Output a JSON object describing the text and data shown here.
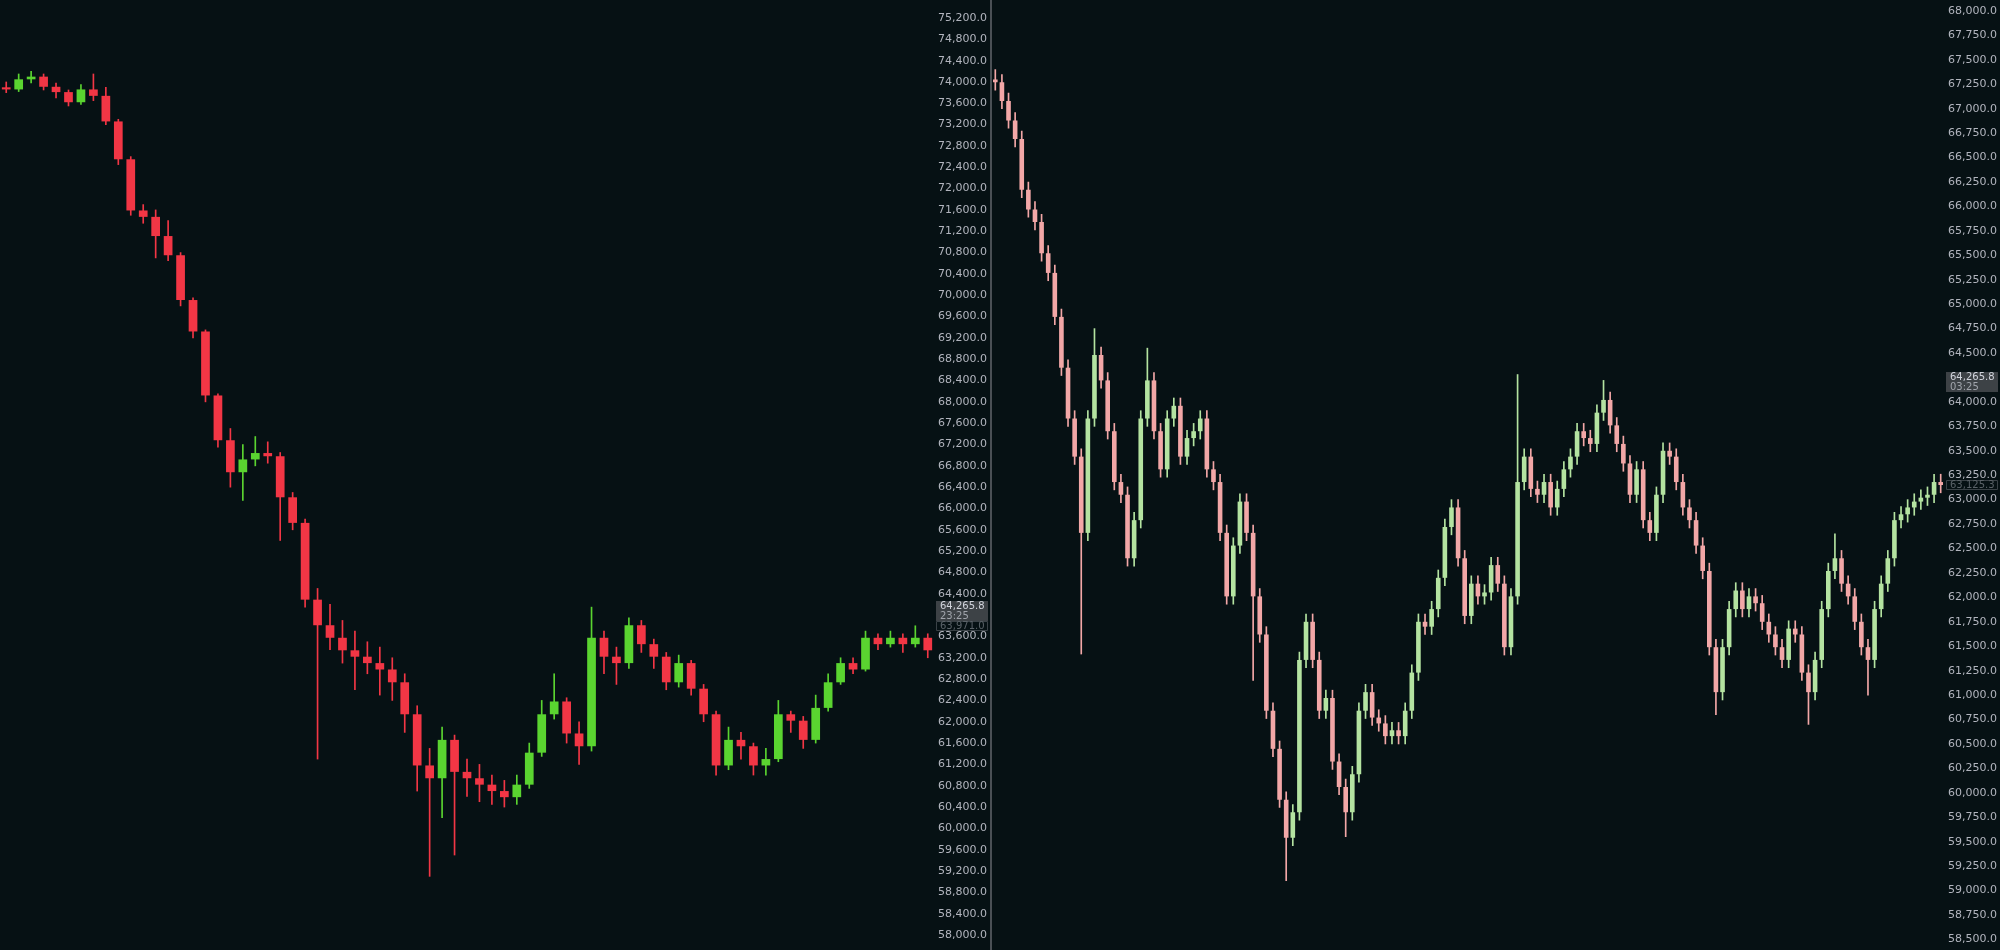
{
  "chart_data": [
    {
      "type": "candlestick",
      "tick_labels": "y",
      "grid": false,
      "legend": false,
      "categories": [
        null,
        null,
        null,
        null,
        null,
        null,
        null,
        null,
        null,
        null,
        null,
        null,
        null,
        null,
        null,
        null,
        null,
        null,
        null,
        null,
        null,
        null,
        null,
        null,
        null,
        null,
        null,
        null,
        null,
        null,
        null,
        null,
        null,
        null,
        null,
        null,
        null,
        null,
        null,
        null,
        null,
        null,
        null,
        null,
        null,
        null,
        null,
        null,
        null,
        null,
        null,
        null,
        null,
        null,
        null,
        null,
        null,
        null,
        null,
        null,
        null,
        null,
        null,
        null,
        null,
        null,
        null,
        null,
        null,
        null,
        null,
        null,
        null,
        null,
        null
      ],
      "ohlc": [
        [
          73900,
          74000,
          73800,
          73860
        ],
        [
          73860,
          74150,
          73820,
          74050
        ],
        [
          74050,
          74200,
          73980,
          74100
        ],
        [
          74100,
          74150,
          73850,
          73910
        ],
        [
          73910,
          73980,
          73700,
          73810
        ],
        [
          73810,
          73850,
          73550,
          73620
        ],
        [
          73620,
          73950,
          73580,
          73860
        ],
        [
          73860,
          74150,
          73650,
          73740
        ],
        [
          73740,
          73900,
          73200,
          73260
        ],
        [
          73260,
          73300,
          72450,
          72550
        ],
        [
          72550,
          72600,
          71500,
          71590
        ],
        [
          71590,
          71700,
          71350,
          71470
        ],
        [
          71470,
          71600,
          70700,
          71110
        ],
        [
          71110,
          71400,
          70650,
          70750
        ],
        [
          70750,
          70800,
          69800,
          69910
        ],
        [
          69910,
          69950,
          69200,
          69320
        ],
        [
          69320,
          69350,
          68000,
          68120
        ],
        [
          68120,
          68150,
          67150,
          67280
        ],
        [
          67280,
          67500,
          66400,
          66680
        ],
        [
          66680,
          67200,
          66150,
          66920
        ],
        [
          66920,
          67350,
          66800,
          67040
        ],
        [
          67040,
          67250,
          66850,
          66980
        ],
        [
          66980,
          67050,
          65400,
          66210
        ],
        [
          66210,
          66300,
          65600,
          65730
        ],
        [
          65730,
          65800,
          64150,
          64290
        ],
        [
          64290,
          64500,
          61300,
          63810
        ],
        [
          63810,
          64200,
          63350,
          63575
        ],
        [
          63575,
          63900,
          63100,
          63340
        ],
        [
          63340,
          63700,
          62600,
          63220
        ],
        [
          63220,
          63500,
          62900,
          63100
        ],
        [
          63100,
          63400,
          62500,
          62980
        ],
        [
          62980,
          63200,
          62400,
          62740
        ],
        [
          62740,
          62900,
          61800,
          62140
        ],
        [
          62140,
          62300,
          60700,
          61180
        ],
        [
          61180,
          61500,
          59100,
          60940
        ],
        [
          60940,
          61900,
          60200,
          61660
        ],
        [
          61660,
          61750,
          59500,
          61060
        ],
        [
          61060,
          61300,
          60600,
          60940
        ],
        [
          60940,
          61200,
          60500,
          60820
        ],
        [
          60820,
          61000,
          60450,
          60700
        ],
        [
          60700,
          60900,
          60400,
          60585
        ],
        [
          60585,
          61000,
          60450,
          60820
        ],
        [
          60820,
          61600,
          60750,
          61420
        ],
        [
          61420,
          62400,
          61350,
          62140
        ],
        [
          62140,
          62900,
          62050,
          62380
        ],
        [
          62380,
          62450,
          61600,
          61780
        ],
        [
          61780,
          62000,
          61200,
          61540
        ],
        [
          61540,
          64150,
          61450,
          63575
        ],
        [
          63575,
          63700,
          62900,
          63220
        ],
        [
          63220,
          63400,
          62700,
          63100
        ],
        [
          63100,
          63950,
          63000,
          63810
        ],
        [
          63810,
          63900,
          63300,
          63455
        ],
        [
          63455,
          63550,
          63000,
          63220
        ],
        [
          63220,
          63300,
          62600,
          62740
        ],
        [
          62740,
          63250,
          62650,
          63100
        ],
        [
          63100,
          63150,
          62500,
          62620
        ],
        [
          62620,
          62700,
          62000,
          62140
        ],
        [
          62140,
          62200,
          61000,
          61180
        ],
        [
          61180,
          61900,
          61100,
          61660
        ],
        [
          61660,
          61800,
          61300,
          61540
        ],
        [
          61540,
          61600,
          61000,
          61180
        ],
        [
          61180,
          61500,
          61000,
          61300
        ],
        [
          61300,
          62400,
          61250,
          62140
        ],
        [
          62140,
          62200,
          61800,
          62020
        ],
        [
          62020,
          62100,
          61500,
          61660
        ],
        [
          61660,
          62500,
          61600,
          62260
        ],
        [
          62260,
          62900,
          62200,
          62740
        ],
        [
          62740,
          63200,
          62700,
          63100
        ],
        [
          63100,
          63200,
          62900,
          62980
        ],
        [
          62980,
          63700,
          62950,
          63575
        ],
        [
          63575,
          63650,
          63350,
          63455
        ],
        [
          63455,
          63700,
          63400,
          63575
        ],
        [
          63575,
          63650,
          63300,
          63455
        ],
        [
          63455,
          63800,
          63400,
          63575
        ],
        [
          63575,
          63650,
          63200,
          63340
        ]
      ],
      "colors": [
        "#f23645",
        "#5ad430",
        "#5ad430",
        "#f23645",
        "#f23645",
        "#f23645",
        "#5ad430",
        "#f23645",
        "#f23645",
        "#f23645",
        "#f23645",
        "#f23645",
        "#f23645",
        "#f23645",
        "#f23645",
        "#f23645",
        "#f23645",
        "#f23645",
        "#f23645",
        "#5ad430",
        "#5ad430",
        "#f23645",
        "#f23645",
        "#f23645",
        "#f23645",
        "#f23645",
        "#f23645",
        "#f23645",
        "#f23645",
        "#f23645",
        "#f23645",
        "#f23645",
        "#f23645",
        "#f23645",
        "#f23645",
        "#5ad430",
        "#f23645",
        "#f23645",
        "#f23645",
        "#f23645",
        "#f23645",
        "#5ad430",
        "#5ad430",
        "#5ad430",
        "#5ad430",
        "#f23645",
        "#f23645",
        "#5ad430",
        "#f23645",
        "#f23645",
        "#5ad430",
        "#f23645",
        "#f23645",
        "#f23645",
        "#5ad430",
        "#f23645",
        "#f23645",
        "#f23645",
        "#5ad430",
        "#f23645",
        "#f23645",
        "#5ad430",
        "#5ad430",
        "#f23645",
        "#f23645",
        "#5ad430",
        "#5ad430",
        "#5ad430",
        "#f23645",
        "#5ad430",
        "#f23645",
        "#5ad430",
        "#f23645",
        "#5ad430",
        "#f23645"
      ],
      "ylim": [
        58000,
        75200
      ],
      "yticks": [
        {
          "value": 58000,
          "label": "58,000.0"
        },
        {
          "value": 58400,
          "label": "58,400.0"
        },
        {
          "value": 58800,
          "label": "58,800.0"
        },
        {
          "value": 59200,
          "label": "59,200.0"
        },
        {
          "value": 59600,
          "label": "59,600.0"
        },
        {
          "value": 60000,
          "label": "60,000.0"
        },
        {
          "value": 60400,
          "label": "60,400.0"
        },
        {
          "value": 60800,
          "label": "60,800.0"
        },
        {
          "value": 61200,
          "label": "61,200.0"
        },
        {
          "value": 61600,
          "label": "61,600.0"
        },
        {
          "value": 62000,
          "label": "62,000.0"
        },
        {
          "value": 62400,
          "label": "62,400.0"
        },
        {
          "value": 62800,
          "label": "62,800.0"
        },
        {
          "value": 63200,
          "label": "63,200.0"
        },
        {
          "value": 63600,
          "label": "63,600.0"
        },
        {
          "value": 64400,
          "label": "64,400.0"
        },
        {
          "value": 64800,
          "label": "64,800.0"
        },
        {
          "value": 65200,
          "label": "65,200.0"
        },
        {
          "value": 65600,
          "label": "65,600.0"
        },
        {
          "value": 66000,
          "label": "66,000.0"
        },
        {
          "value": 66400,
          "label": "66,400.0"
        },
        {
          "value": 66800,
          "label": "66,800.0"
        },
        {
          "value": 67200,
          "label": "67,200.0"
        },
        {
          "value": 67600,
          "label": "67,600.0"
        },
        {
          "value": 68000,
          "label": "68,000.0"
        },
        {
          "value": 68400,
          "label": "68,400.0"
        },
        {
          "value": 68800,
          "label": "68,800.0"
        },
        {
          "value": 69200,
          "label": "69,200.0"
        },
        {
          "value": 69600,
          "label": "69,600.0"
        },
        {
          "value": 70000,
          "label": "70,000.0"
        },
        {
          "value": 70400,
          "label": "70,400.0"
        },
        {
          "value": 70800,
          "label": "70,800.0"
        },
        {
          "value": 71200,
          "label": "71,200.0"
        },
        {
          "value": 71600,
          "label": "71,600.0"
        },
        {
          "value": 72000,
          "label": "72,000.0"
        },
        {
          "value": 72400,
          "label": "72,400.0"
        },
        {
          "value": 72800,
          "label": "72,800.0"
        },
        {
          "value": 73200,
          "label": "73,200.0"
        },
        {
          "value": 73600,
          "label": "73,600.0"
        },
        {
          "value": 74000,
          "label": "74,000.0"
        },
        {
          "value": 74400,
          "label": "74,400.0"
        },
        {
          "value": 74800,
          "label": "74,800.0"
        },
        {
          "value": 75200,
          "label": "75,200.0"
        }
      ],
      "annotations": [
        "64,265.8",
        "23:25",
        "63,971.0"
      ]
    },
    {
      "type": "candlestick",
      "tick_labels": "y",
      "grid": false,
      "legend": false,
      "categories": [
        null,
        null,
        null,
        null,
        null,
        null,
        null,
        null,
        null,
        null,
        null,
        null,
        null,
        null,
        null,
        null,
        null,
        null,
        null,
        null,
        null,
        null,
        null,
        null,
        null,
        null,
        null,
        null,
        null,
        null,
        null,
        null,
        null,
        null,
        null,
        null,
        null,
        null,
        null,
        null,
        null,
        null,
        null,
        null,
        null,
        null,
        null,
        null,
        null,
        null,
        null,
        null,
        null,
        null,
        null,
        null,
        null,
        null,
        null,
        null,
        null,
        null,
        null,
        null,
        null,
        null,
        null,
        null,
        null,
        null,
        null,
        null,
        null,
        null,
        null,
        null,
        null,
        null,
        null,
        null,
        null,
        null,
        null,
        null,
        null,
        null,
        null,
        null,
        null,
        null,
        null,
        null,
        null,
        null,
        null,
        null,
        null,
        null,
        null,
        null,
        null,
        null,
        null,
        null,
        null,
        null,
        null,
        null,
        null,
        null,
        null,
        null,
        null,
        null,
        null,
        null,
        null,
        null,
        null,
        null,
        null,
        null,
        null,
        null,
        null,
        null,
        null,
        null,
        null,
        null,
        null,
        null,
        null,
        null,
        null,
        null,
        null,
        null,
        null,
        null,
        null,
        null,
        null,
        null
      ],
      "ohlc": [
        [
          67300,
          67400,
          67190,
          67270
        ],
        [
          67270,
          67350,
          67000,
          67080
        ],
        [
          67080,
          67160,
          66800,
          66880
        ],
        [
          66880,
          66960,
          66610,
          66690
        ],
        [
          66690,
          66770,
          66090,
          66170
        ],
        [
          66170,
          66250,
          65890,
          65970
        ],
        [
          65970,
          66050,
          65760,
          65840
        ],
        [
          65840,
          65920,
          65440,
          65520
        ],
        [
          65520,
          65600,
          65240,
          65320
        ],
        [
          65320,
          65400,
          64790,
          64870
        ],
        [
          64870,
          64950,
          64270,
          64350
        ],
        [
          64350,
          64430,
          63750,
          63830
        ],
        [
          63830,
          63910,
          63360,
          63440
        ],
        [
          63440,
          63520,
          61420,
          62660
        ],
        [
          62660,
          63910,
          62580,
          63830
        ],
        [
          63830,
          64750,
          63750,
          64480
        ],
        [
          64480,
          64560,
          64140,
          64220
        ],
        [
          64220,
          64300,
          63620,
          63700
        ],
        [
          63700,
          63780,
          63100,
          63180
        ],
        [
          63180,
          63260,
          62970,
          63050
        ],
        [
          63050,
          63130,
          62320,
          62400
        ],
        [
          62400,
          62870,
          62320,
          62790
        ],
        [
          62790,
          63910,
          62710,
          63830
        ],
        [
          63830,
          64550,
          63750,
          64220
        ],
        [
          64220,
          64300,
          63620,
          63700
        ],
        [
          63700,
          63780,
          63230,
          63310
        ],
        [
          63310,
          63910,
          63230,
          63830
        ],
        [
          63830,
          64040,
          63750,
          63960
        ],
        [
          63960,
          64040,
          63360,
          63440
        ],
        [
          63440,
          63710,
          63360,
          63630
        ],
        [
          63630,
          63780,
          63550,
          63700
        ],
        [
          63700,
          63910,
          63620,
          63830
        ],
        [
          63830,
          63910,
          63230,
          63310
        ],
        [
          63310,
          63390,
          63100,
          63180
        ],
        [
          63180,
          63260,
          62580,
          62660
        ],
        [
          62660,
          62740,
          61930,
          62010
        ],
        [
          62010,
          62610,
          61930,
          62530
        ],
        [
          62530,
          63060,
          62450,
          62980
        ],
        [
          62980,
          63060,
          62580,
          62660
        ],
        [
          62660,
          62740,
          61150,
          62010
        ],
        [
          62010,
          62090,
          61540,
          61620
        ],
        [
          61620,
          61700,
          60760,
          60840
        ],
        [
          60840,
          60920,
          60370,
          60450
        ],
        [
          60450,
          60530,
          59850,
          59930
        ],
        [
          59930,
          60010,
          59100,
          59540
        ],
        [
          59540,
          59880,
          59460,
          59800
        ],
        [
          59800,
          61440,
          59720,
          61360
        ],
        [
          61360,
          61830,
          61280,
          61750
        ],
        [
          61750,
          61830,
          61280,
          61360
        ],
        [
          61360,
          61440,
          60760,
          60840
        ],
        [
          60840,
          61050,
          60760,
          60970
        ],
        [
          60970,
          61050,
          60240,
          60320
        ],
        [
          60320,
          60400,
          59980,
          60060
        ],
        [
          60060,
          60140,
          59550,
          59800
        ],
        [
          59800,
          60270,
          59720,
          60190
        ],
        [
          60190,
          60920,
          60110,
          60840
        ],
        [
          60840,
          61110,
          60760,
          61030
        ],
        [
          61030,
          61110,
          60690,
          60770
        ],
        [
          60770,
          60850,
          60630,
          60710
        ],
        [
          60710,
          60790,
          60500,
          60580
        ],
        [
          60580,
          60720,
          60500,
          60640
        ],
        [
          60640,
          60720,
          60500,
          60580
        ],
        [
          60580,
          60920,
          60500,
          60840
        ],
        [
          60840,
          61310,
          60760,
          61230
        ],
        [
          61230,
          61830,
          61150,
          61750
        ],
        [
          61750,
          61830,
          61620,
          61700
        ],
        [
          61700,
          61960,
          61620,
          61880
        ],
        [
          61880,
          62280,
          61800,
          62200
        ],
        [
          62200,
          62800,
          62120,
          62720
        ],
        [
          62720,
          63000,
          62640,
          62920
        ],
        [
          62920,
          63000,
          62320,
          62400
        ],
        [
          62400,
          62480,
          61730,
          61810
        ],
        [
          61810,
          62220,
          61730,
          62140
        ],
        [
          62140,
          62220,
          61930,
          62010
        ],
        [
          62010,
          62130,
          61930,
          62050
        ],
        [
          62050,
          62410,
          61970,
          62330
        ],
        [
          62330,
          62410,
          62060,
          62140
        ],
        [
          62140,
          62220,
          61410,
          61490
        ],
        [
          61490,
          62090,
          61410,
          62010
        ],
        [
          62010,
          64280,
          61930,
          63180
        ],
        [
          63180,
          63520,
          63100,
          63440
        ],
        [
          63440,
          63520,
          63030,
          63110
        ],
        [
          63110,
          63190,
          62970,
          63050
        ],
        [
          63050,
          63260,
          62970,
          63180
        ],
        [
          63180,
          63260,
          62840,
          62920
        ],
        [
          62920,
          63190,
          62840,
          63110
        ],
        [
          63110,
          63390,
          63030,
          63310
        ],
        [
          63310,
          63520,
          63230,
          63440
        ],
        [
          63440,
          63780,
          63360,
          63700
        ],
        [
          63700,
          63780,
          63550,
          63630
        ],
        [
          63630,
          63710,
          63490,
          63570
        ],
        [
          63570,
          63970,
          63490,
          63890
        ],
        [
          63890,
          64220,
          63810,
          64020
        ],
        [
          64020,
          64100,
          63680,
          63760
        ],
        [
          63760,
          63840,
          63490,
          63570
        ],
        [
          63570,
          63650,
          63290,
          63370
        ],
        [
          63370,
          63450,
          62970,
          63050
        ],
        [
          63050,
          63390,
          62970,
          63310
        ],
        [
          63310,
          63390,
          62710,
          62790
        ],
        [
          62790,
          62870,
          62580,
          62660
        ],
        [
          62660,
          63130,
          62580,
          63050
        ],
        [
          63050,
          63580,
          62970,
          63500
        ],
        [
          63500,
          63580,
          63360,
          63440
        ],
        [
          63440,
          63520,
          63100,
          63180
        ],
        [
          63180,
          63260,
          62840,
          62920
        ],
        [
          62920,
          63000,
          62710,
          62790
        ],
        [
          62790,
          62870,
          62450,
          62530
        ],
        [
          62530,
          62610,
          62190,
          62270
        ],
        [
          62270,
          62350,
          61410,
          61490
        ],
        [
          61490,
          61570,
          60800,
          61030
        ],
        [
          61030,
          61570,
          60950,
          61490
        ],
        [
          61490,
          61960,
          61410,
          61880
        ],
        [
          61880,
          62150,
          61800,
          62070
        ],
        [
          62070,
          62150,
          61800,
          61880
        ],
        [
          61880,
          62090,
          61800,
          62010
        ],
        [
          62010,
          62090,
          61860,
          61940
        ],
        [
          61940,
          62020,
          61670,
          61750
        ],
        [
          61750,
          61830,
          61540,
          61620
        ],
        [
          61620,
          61700,
          61410,
          61490
        ],
        [
          61490,
          61570,
          61280,
          61360
        ],
        [
          61360,
          61760,
          61280,
          61680
        ],
        [
          61680,
          61760,
          61540,
          61620
        ],
        [
          61620,
          61700,
          61150,
          61230
        ],
        [
          61230,
          61310,
          60700,
          61030
        ],
        [
          61030,
          61440,
          60950,
          61360
        ],
        [
          61360,
          61960,
          61280,
          61880
        ],
        [
          61880,
          62350,
          61800,
          62270
        ],
        [
          62270,
          62650,
          62190,
          62400
        ],
        [
          62400,
          62480,
          62060,
          62140
        ],
        [
          62140,
          62220,
          61930,
          62010
        ],
        [
          62010,
          62090,
          61670,
          61750
        ],
        [
          61750,
          61830,
          61410,
          61490
        ],
        [
          61490,
          61570,
          61000,
          61360
        ],
        [
          61360,
          61960,
          61280,
          61880
        ],
        [
          61880,
          62220,
          61800,
          62140
        ],
        [
          62140,
          62480,
          62060,
          62400
        ],
        [
          62400,
          62870,
          62320,
          62790
        ],
        [
          62790,
          62930,
          62710,
          62850
        ],
        [
          62850,
          63000,
          62770,
          62920
        ],
        [
          62920,
          63060,
          62840,
          62980
        ],
        [
          62980,
          63100,
          62900,
          63020
        ],
        [
          63020,
          63130,
          62940,
          63050
        ],
        [
          63050,
          63260,
          62970,
          63180
        ],
        [
          63180,
          63260,
          63070,
          63150
        ]
      ],
      "colors": [
        "#f2a7a7",
        "#f2a7a7",
        "#f2a7a7",
        "#f2a7a7",
        "#f2a7a7",
        "#f2a7a7",
        "#f2a7a7",
        "#f2a7a7",
        "#f2a7a7",
        "#f2a7a7",
        "#f2a7a7",
        "#f2a7a7",
        "#f2a7a7",
        "#f2a7a7",
        "#b4e3a1",
        "#b4e3a1",
        "#f2a7a7",
        "#f2a7a7",
        "#f2a7a7",
        "#f2a7a7",
        "#f2a7a7",
        "#b4e3a1",
        "#b4e3a1",
        "#b4e3a1",
        "#f2a7a7",
        "#f2a7a7",
        "#b4e3a1",
        "#b4e3a1",
        "#f2a7a7",
        "#b4e3a1",
        "#b4e3a1",
        "#b4e3a1",
        "#f2a7a7",
        "#f2a7a7",
        "#f2a7a7",
        "#f2a7a7",
        "#b4e3a1",
        "#b4e3a1",
        "#f2a7a7",
        "#f2a7a7",
        "#f2a7a7",
        "#f2a7a7",
        "#f2a7a7",
        "#f2a7a7",
        "#f2a7a7",
        "#b4e3a1",
        "#b4e3a1",
        "#b4e3a1",
        "#f2a7a7",
        "#f2a7a7",
        "#b4e3a1",
        "#f2a7a7",
        "#f2a7a7",
        "#f2a7a7",
        "#b4e3a1",
        "#b4e3a1",
        "#b4e3a1",
        "#f2a7a7",
        "#f2a7a7",
        "#f2a7a7",
        "#b4e3a1",
        "#f2a7a7",
        "#b4e3a1",
        "#b4e3a1",
        "#b4e3a1",
        "#f2a7a7",
        "#b4e3a1",
        "#b4e3a1",
        "#b4e3a1",
        "#b4e3a1",
        "#f2a7a7",
        "#f2a7a7",
        "#b4e3a1",
        "#f2a7a7",
        "#b4e3a1",
        "#b4e3a1",
        "#f2a7a7",
        "#f2a7a7",
        "#b4e3a1",
        "#b4e3a1",
        "#b4e3a1",
        "#f2a7a7",
        "#f2a7a7",
        "#b4e3a1",
        "#f2a7a7",
        "#b4e3a1",
        "#b4e3a1",
        "#b4e3a1",
        "#b4e3a1",
        "#f2a7a7",
        "#f2a7a7",
        "#b4e3a1",
        "#b4e3a1",
        "#f2a7a7",
        "#f2a7a7",
        "#f2a7a7",
        "#f2a7a7",
        "#b4e3a1",
        "#f2a7a7",
        "#f2a7a7",
        "#b4e3a1",
        "#b4e3a1",
        "#f2a7a7",
        "#f2a7a7",
        "#f2a7a7",
        "#f2a7a7",
        "#f2a7a7",
        "#f2a7a7",
        "#f2a7a7",
        "#f2a7a7",
        "#b4e3a1",
        "#b4e3a1",
        "#b4e3a1",
        "#f2a7a7",
        "#b4e3a1",
        "#f2a7a7",
        "#f2a7a7",
        "#f2a7a7",
        "#f2a7a7",
        "#f2a7a7",
        "#b4e3a1",
        "#f2a7a7",
        "#f2a7a7",
        "#f2a7a7",
        "#b4e3a1",
        "#b4e3a1",
        "#b4e3a1",
        "#b4e3a1",
        "#f2a7a7",
        "#f2a7a7",
        "#f2a7a7",
        "#f2a7a7",
        "#f2a7a7",
        "#b4e3a1",
        "#b4e3a1",
        "#b4e3a1",
        "#b4e3a1",
        "#b4e3a1",
        "#b4e3a1",
        "#b4e3a1",
        "#b4e3a1",
        "#b4e3a1",
        "#b4e3a1",
        "#f2a7a7"
      ],
      "ylim": [
        58500,
        68000
      ],
      "yticks": [
        {
          "value": 58500,
          "label": "58,500.0"
        },
        {
          "value": 58750,
          "label": "58,750.0"
        },
        {
          "value": 59000,
          "label": "59,000.0"
        },
        {
          "value": 59250,
          "label": "59,250.0"
        },
        {
          "value": 59500,
          "label": "59,500.0"
        },
        {
          "value": 59750,
          "label": "59,750.0"
        },
        {
          "value": 60000,
          "label": "60,000.0"
        },
        {
          "value": 60250,
          "label": "60,250.0"
        },
        {
          "value": 60500,
          "label": "60,500.0"
        },
        {
          "value": 60750,
          "label": "60,750.0"
        },
        {
          "value": 61000,
          "label": "61,000.0"
        },
        {
          "value": 61250,
          "label": "61,250.0"
        },
        {
          "value": 61500,
          "label": "61,500.0"
        },
        {
          "value": 61750,
          "label": "61,750.0"
        },
        {
          "value": 62000,
          "label": "62,000.0"
        },
        {
          "value": 62250,
          "label": "62,250.0"
        },
        {
          "value": 62500,
          "label": "62,500.0"
        },
        {
          "value": 62750,
          "label": "62,750.0"
        },
        {
          "value": 63000,
          "label": "63,000.0"
        },
        {
          "value": 63250,
          "label": "63,250.0"
        },
        {
          "value": 63500,
          "label": "63,500.0"
        },
        {
          "value": 63750,
          "label": "63,750.0"
        },
        {
          "value": 64000,
          "label": "64,000.0"
        },
        {
          "value": 64500,
          "label": "64,500.0"
        },
        {
          "value": 64750,
          "label": "64,750.0"
        },
        {
          "value": 65000,
          "label": "65,000.0"
        },
        {
          "value": 65250,
          "label": "65,250.0"
        },
        {
          "value": 65500,
          "label": "65,500.0"
        },
        {
          "value": 65750,
          "label": "65,750.0"
        },
        {
          "value": 66000,
          "label": "66,000.0"
        },
        {
          "value": 66250,
          "label": "66,250.0"
        },
        {
          "value": 66500,
          "label": "66,500.0"
        },
        {
          "value": 66750,
          "label": "66,750.0"
        },
        {
          "value": 67000,
          "label": "67,000.0"
        },
        {
          "value": 67250,
          "label": "67,250.0"
        },
        {
          "value": 67500,
          "label": "67,500.0"
        },
        {
          "value": 67750,
          "label": "67,750.0"
        },
        {
          "value": 68000,
          "label": "68,000.0"
        }
      ],
      "annotations": [
        "64,265.8",
        "03:25",
        "63,125.3"
      ]
    }
  ]
}
